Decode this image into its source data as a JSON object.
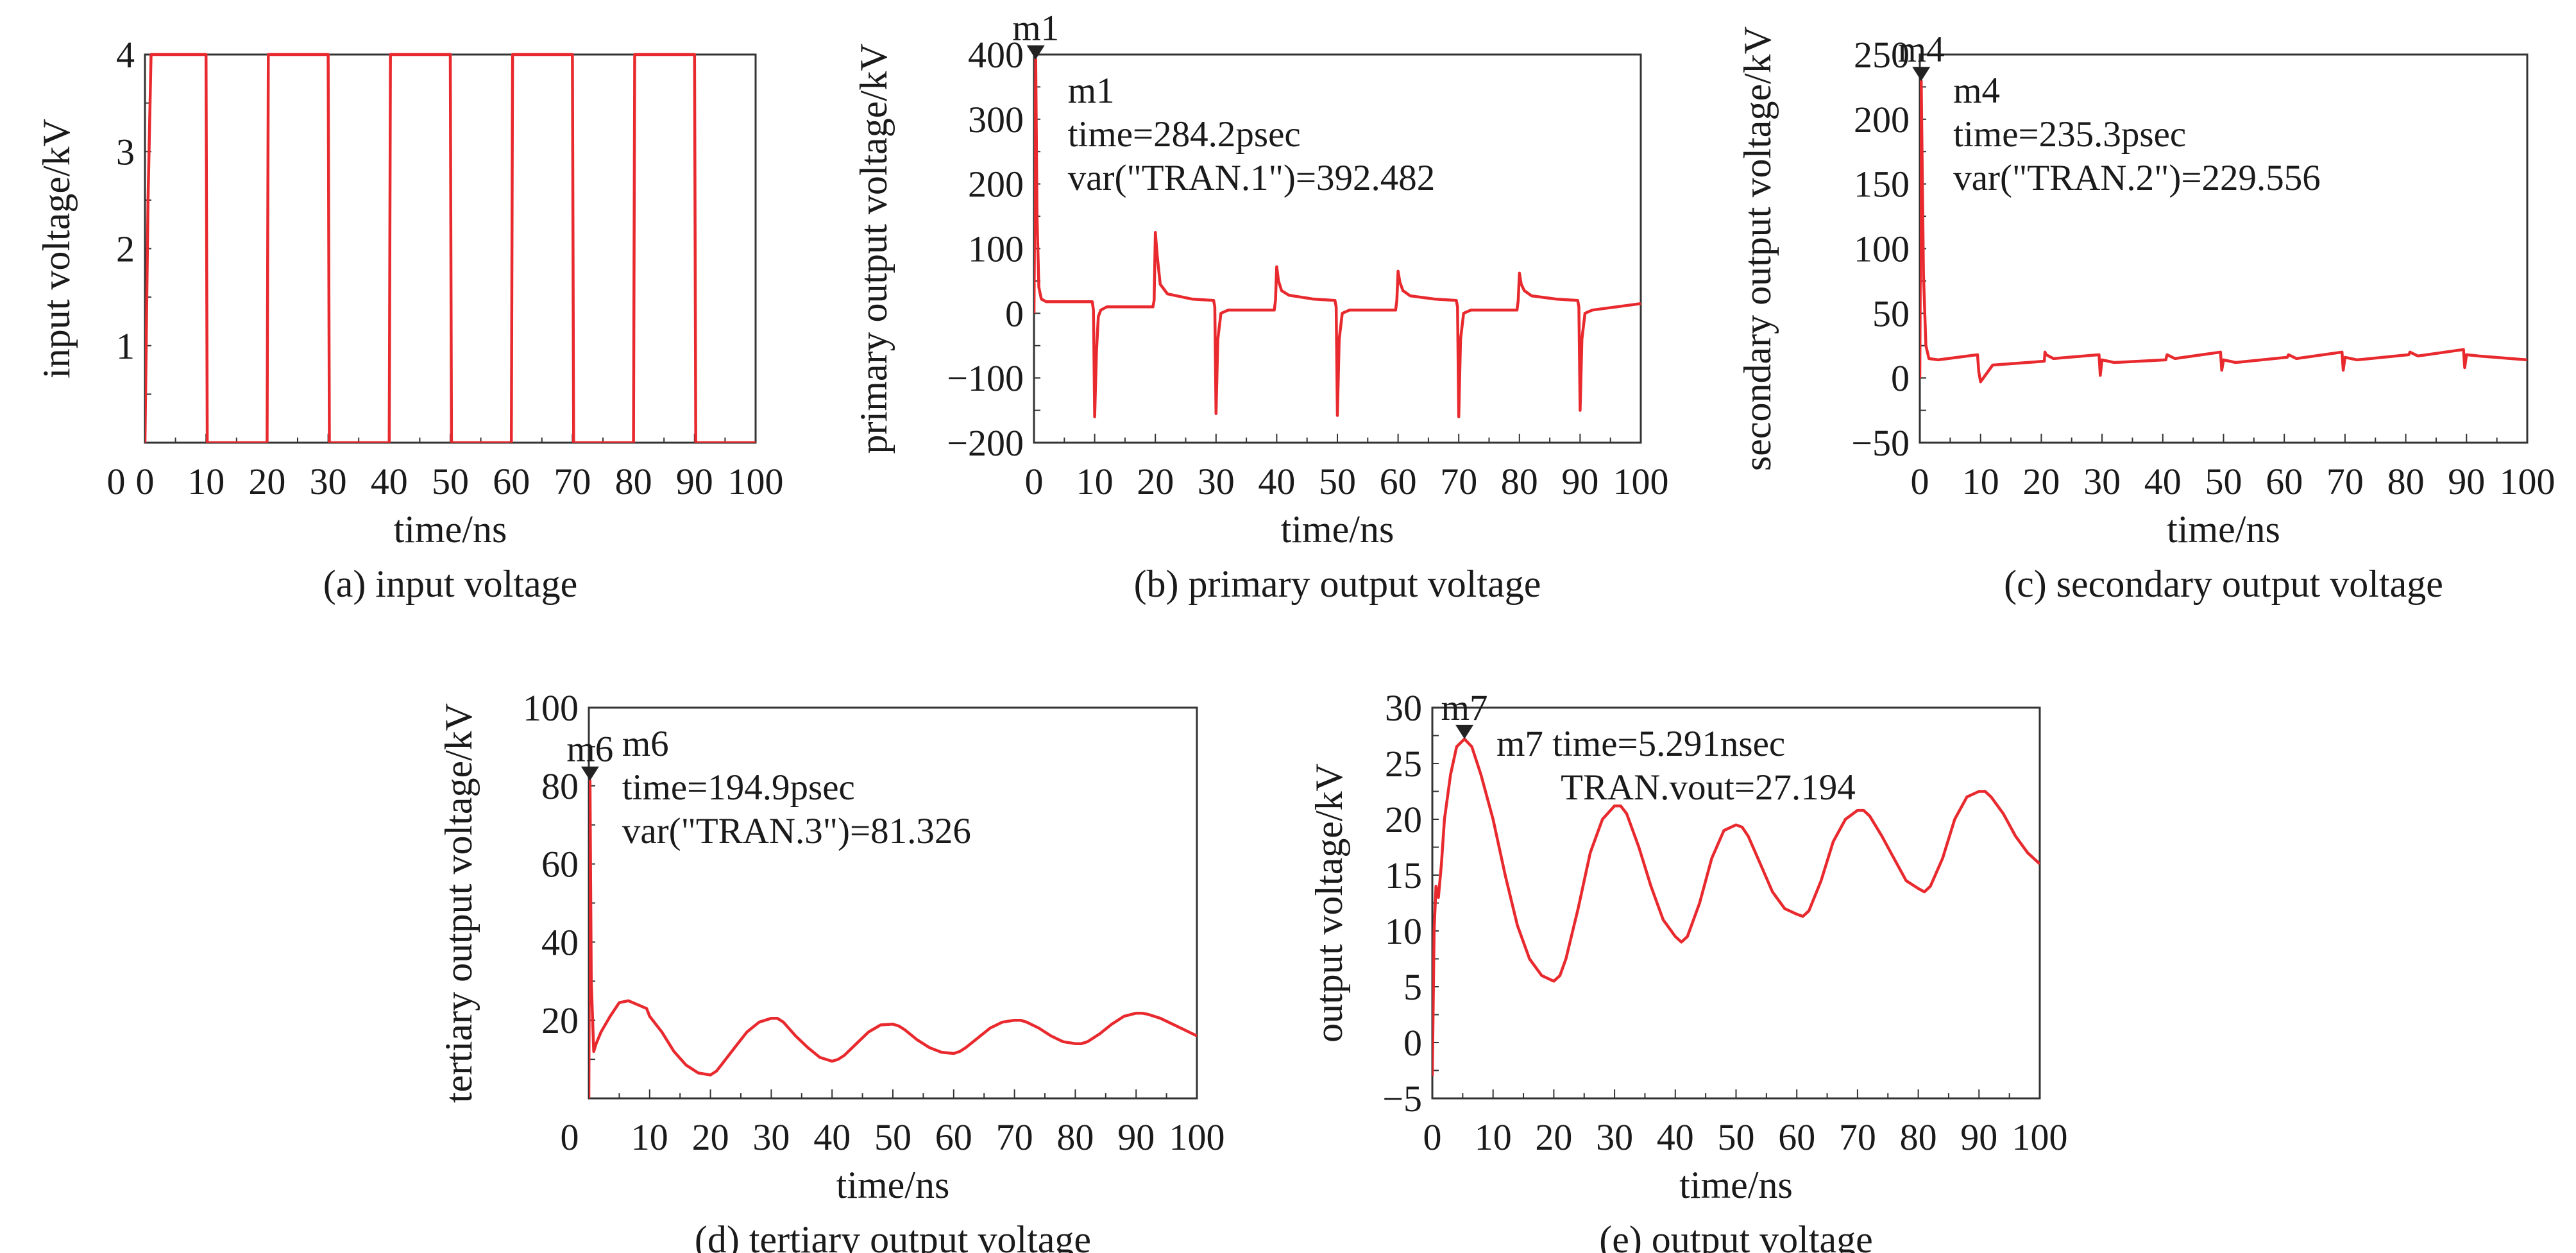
{
  "colors": {
    "trace": "#e8292e",
    "axis": "#333333",
    "text": "#1a1a1a"
  },
  "chart_data": [
    {
      "type": "line",
      "caption": "(a) input voltage",
      "xlabel": "time/ns",
      "ylabel": "input voltage/kV",
      "xlim": [
        0,
        100
      ],
      "ylim": [
        0,
        4
      ],
      "xticks": [
        "0",
        "10",
        "20",
        "30",
        "40",
        "50",
        "60",
        "70",
        "80",
        "90",
        "100"
      ],
      "yticks": [
        "1",
        "2",
        "3",
        "4"
      ],
      "ytick_values": [
        1,
        2,
        3,
        4
      ],
      "marker": null,
      "series": [
        {
          "x": [
            0,
            0.5,
            1,
            10,
            10.2,
            20,
            20.2,
            30,
            30.2,
            40,
            40.2,
            50,
            50.2,
            60,
            60.2,
            70,
            70.2,
            80,
            80.2,
            90,
            90.2,
            100
          ],
          "y": [
            0,
            2.5,
            4,
            4,
            0,
            0,
            4,
            4,
            0,
            0,
            4,
            4,
            0,
            0,
            4,
            4,
            0,
            0,
            4,
            4,
            0,
            0
          ]
        }
      ]
    },
    {
      "type": "line",
      "caption": "(b)  primary output voltage",
      "xlabel": "time/ns",
      "ylabel": "primary output voltage/kV",
      "xlim": [
        0,
        100
      ],
      "ylim": [
        -200,
        400
      ],
      "xticks": [
        "0",
        "10",
        "20",
        "30",
        "40",
        "50",
        "60",
        "70",
        "80",
        "90",
        "100"
      ],
      "yticks": [
        "−200",
        "−100",
        "0",
        "100",
        "200",
        "300",
        "400"
      ],
      "ytick_values": [
        -200,
        -100,
        0,
        100,
        200,
        300,
        400
      ],
      "marker": {
        "label": "m1",
        "x": 0.2842,
        "y": 392.482,
        "annotation": [
          "m1",
          "time=284.2psec",
          "var(\"TRAN.1\")=392.482"
        ]
      },
      "series": [
        {
          "x": [
            0,
            0.2842,
            0.5,
            0.8,
            1.2,
            2,
            9.6,
            9.8,
            10,
            10.3,
            10.6,
            11,
            12,
            19.6,
            19.8,
            20,
            20.3,
            20.8,
            22,
            26,
            29.6,
            29.8,
            30,
            30.3,
            30.8,
            32,
            39.6,
            39.8,
            40,
            40.3,
            40.8,
            42,
            46,
            49.6,
            49.8,
            50,
            50.3,
            50.8,
            52,
            59.6,
            59.8,
            60,
            60.3,
            60.8,
            62,
            66,
            69.6,
            69.8,
            70,
            70.3,
            70.8,
            72,
            79.6,
            79.8,
            80,
            80.3,
            80.8,
            82,
            86,
            89.6,
            89.8,
            90,
            90.3,
            90.8,
            92,
            100
          ],
          "y": [
            0,
            392.482,
            150,
            40,
            22,
            18,
            18,
            5,
            -160,
            -60,
            -5,
            5,
            10,
            10,
            20,
            125,
            90,
            45,
            30,
            22,
            20,
            10,
            -155,
            -40,
            0,
            5,
            5,
            20,
            72,
            50,
            35,
            28,
            22,
            20,
            10,
            -158,
            -40,
            0,
            5,
            5,
            20,
            65,
            48,
            35,
            27,
            22,
            20,
            10,
            -160,
            -40,
            0,
            5,
            5,
            20,
            62,
            45,
            35,
            27,
            22,
            20,
            10,
            -150,
            -40,
            0,
            5,
            15
          ]
        }
      ]
    },
    {
      "type": "line",
      "caption": "(c)  secondary output voltage",
      "xlabel": "time/ns",
      "ylabel": "secondary output voltage/kV",
      "xlim": [
        0,
        100
      ],
      "ylim": [
        -50,
        250
      ],
      "xticks": [
        "0",
        "10",
        "20",
        "30",
        "40",
        "50",
        "60",
        "70",
        "80",
        "90",
        "100"
      ],
      "yticks": [
        "−50",
        "0",
        "50",
        "100",
        "150",
        "200",
        "250"
      ],
      "ytick_values": [
        -50,
        0,
        50,
        100,
        150,
        200,
        250
      ],
      "marker": {
        "label": "m4",
        "x": 0.2353,
        "y": 229.556,
        "annotation": [
          "m4",
          "time=235.3psec",
          "var(\"TRAN.2\")=229.556"
        ]
      },
      "series": [
        {
          "x": [
            0,
            0.2353,
            0.6,
            1,
            1.5,
            3,
            9.5,
            9.7,
            10,
            12,
            20.5,
            20.6,
            20.8,
            22,
            29.5,
            29.7,
            30,
            32,
            40.5,
            40.7,
            42,
            49.5,
            49.7,
            50,
            52,
            60.5,
            60.7,
            62,
            69.5,
            69.7,
            70,
            72,
            80.5,
            80.7,
            82,
            89.5,
            89.7,
            90,
            92,
            100
          ],
          "y": [
            0,
            229.556,
            80,
            25,
            15,
            14,
            18,
            5,
            -3,
            10,
            13,
            20,
            18,
            15,
            18,
            2,
            14,
            12,
            14,
            18,
            15,
            20,
            6,
            14,
            12,
            16,
            18,
            15,
            20,
            6,
            16,
            14,
            18,
            20,
            17,
            22,
            8,
            18,
            17,
            14
          ]
        }
      ]
    },
    {
      "type": "line",
      "caption": "(d)  tertiary output voltage",
      "xlabel": "time/ns",
      "ylabel": "tertiary output voltage/kV",
      "xlim": [
        0,
        100
      ],
      "ylim": [
        0,
        100
      ],
      "xticks": [
        "10",
        "20",
        "30",
        "40",
        "50",
        "60",
        "70",
        "80",
        "90",
        "100"
      ],
      "xtick_values": [
        10,
        20,
        30,
        40,
        50,
        60,
        70,
        80,
        90,
        100
      ],
      "yticks": [
        "20",
        "40",
        "60",
        "80",
        "100"
      ],
      "ytick_values": [
        20,
        40,
        60,
        80,
        100
      ],
      "marker": {
        "label": "m6",
        "x": 0.1949,
        "y": 81.326,
        "annotation": [
          "m6",
          "time=194.9psec",
          "var(\"TRAN.3\")=81.326"
        ]
      },
      "series": [
        {
          "x": [
            0,
            0.1949,
            0.4,
            0.8,
            1.2,
            2,
            3.5,
            5,
            6.5,
            8,
            9.5,
            10,
            12,
            14,
            16,
            18,
            20,
            21,
            22,
            24,
            26,
            28,
            30,
            31,
            32,
            34,
            36,
            38,
            40,
            41,
            42,
            44,
            46,
            48,
            50,
            51,
            52,
            54,
            56,
            58,
            60,
            61,
            62,
            64,
            66,
            68,
            70,
            71,
            72,
            74,
            76,
            78,
            80,
            81,
            82,
            84,
            86,
            88,
            90,
            91,
            92,
            94,
            96,
            98,
            100
          ],
          "y": [
            0,
            81.326,
            30,
            12,
            14,
            17,
            21,
            24.5,
            25,
            24,
            23,
            21,
            17,
            12,
            8.5,
            6.5,
            6,
            7,
            9,
            13,
            17,
            19.5,
            20.5,
            20.5,
            19.5,
            16,
            13,
            10.5,
            9.5,
            10,
            11,
            14,
            17,
            18.8,
            19,
            18.5,
            17.5,
            15,
            13,
            11.8,
            11.5,
            12,
            13,
            15.5,
            18,
            19.5,
            20,
            20,
            19.5,
            18,
            16,
            14.5,
            14,
            14,
            14.5,
            16.5,
            19,
            21,
            21.8,
            21.8,
            21.5,
            20.5,
            19,
            17.5,
            16
          ]
        }
      ]
    },
    {
      "type": "line",
      "caption": "(e)  output voltage",
      "xlabel": "time/ns",
      "ylabel": "output voltage/kV",
      "xlim": [
        0,
        100
      ],
      "ylim": [
        -5,
        30
      ],
      "xticks": [
        "0",
        "10",
        "20",
        "30",
        "40",
        "50",
        "60",
        "70",
        "80",
        "90",
        "100"
      ],
      "yticks": [
        "−5",
        "0",
        "5",
        "10",
        "15",
        "20",
        "25",
        "30"
      ],
      "ytick_values": [
        -5,
        0,
        5,
        10,
        15,
        20,
        25,
        30
      ],
      "marker": {
        "label": "m7",
        "x": 5.291,
        "y": 27.194,
        "annotation": [
          "m7 time=5.291nsec",
          "TRAN.vout=27.194"
        ]
      },
      "series": [
        {
          "x": [
            0,
            0.3,
            0.6,
            1,
            1.5,
            2,
            3,
            4,
            5.291,
            6.5,
            8,
            10,
            12,
            14,
            16,
            18,
            20,
            21,
            22,
            24,
            26,
            28,
            30,
            31,
            32,
            34,
            36,
            38,
            40,
            41,
            42,
            44,
            46,
            48,
            50,
            51,
            52,
            54,
            56,
            58,
            60,
            61,
            62,
            64,
            66,
            68,
            70,
            71,
            72,
            74,
            76,
            78,
            80,
            81,
            82,
            84,
            86,
            88,
            90,
            91,
            92,
            94,
            96,
            98,
            100
          ],
          "y": [
            -3,
            10,
            14,
            13,
            16,
            20,
            24,
            26.5,
            27.194,
            26.5,
            24,
            20,
            15,
            10.5,
            7.5,
            6,
            5.5,
            6,
            7.5,
            12,
            17,
            20,
            21.2,
            21.2,
            20.5,
            17.5,
            14,
            11,
            9.5,
            9,
            9.5,
            12.5,
            16.5,
            19,
            19.5,
            19.3,
            18.5,
            16,
            13.5,
            12,
            11.5,
            11.3,
            11.8,
            14.5,
            18,
            20,
            20.8,
            20.8,
            20.3,
            18.5,
            16.5,
            14.5,
            13.8,
            13.5,
            14,
            16.5,
            20,
            22,
            22.5,
            22.5,
            22,
            20.5,
            18.5,
            17,
            16
          ]
        }
      ]
    }
  ]
}
